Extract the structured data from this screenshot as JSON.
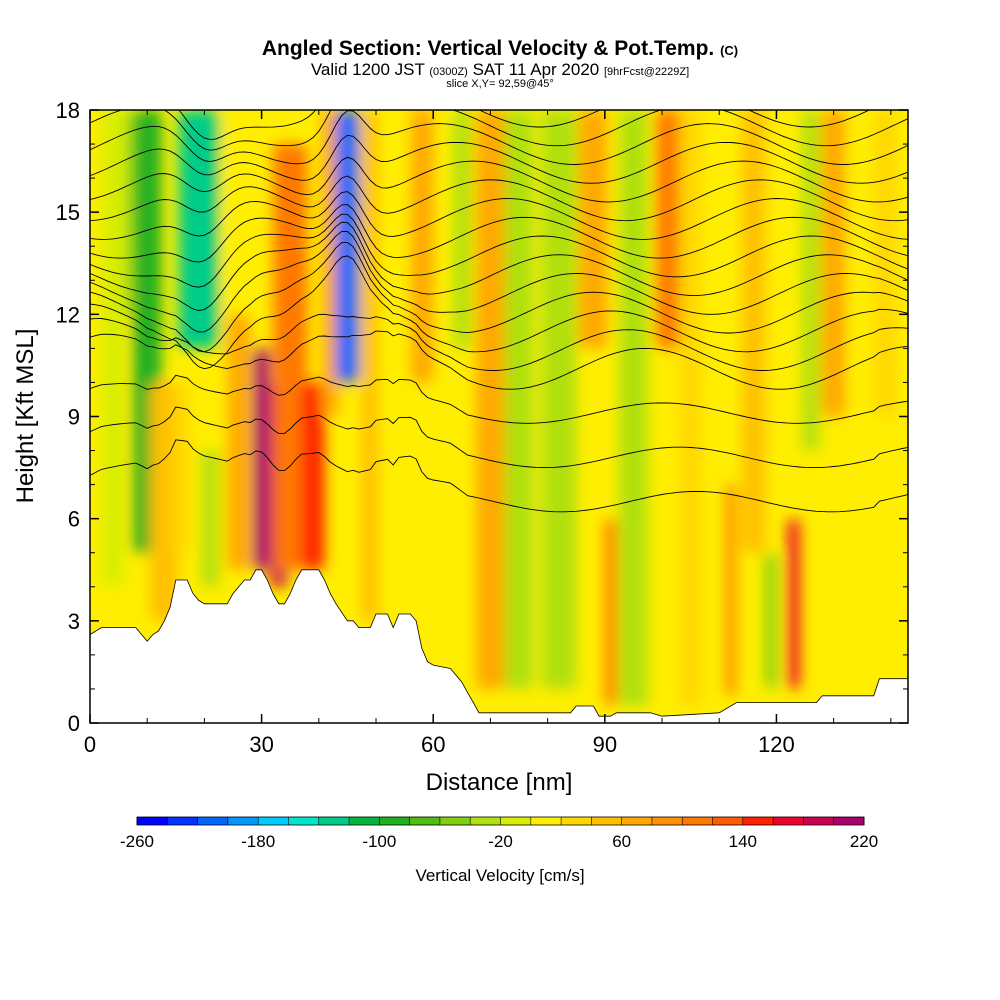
{
  "header": {
    "title_main": "Angled Section: Vertical Velocity & Pot.Temp.",
    "title_unit": "(C)",
    "valid_a": "Valid 1200 JST",
    "valid_b": "(0300Z)",
    "valid_c": "SAT 11 Apr 2020",
    "valid_d": "[9hrFcst@2229Z]",
    "slice": "slice X,Y= 92,59@45°"
  },
  "chart_data": {
    "type": "heatmap",
    "xlabel": "Distance [nm]",
    "ylabel": "Height [Kft MSL]",
    "xlim": [
      0,
      143
    ],
    "ylim": [
      0,
      18
    ],
    "x_ticks": [
      0,
      30,
      60,
      90,
      120
    ],
    "y_ticks": [
      0,
      3,
      6,
      9,
      12,
      15,
      18
    ],
    "terrain_profile": [
      [
        0,
        2.6
      ],
      [
        2,
        2.8
      ],
      [
        8,
        2.8
      ],
      [
        10,
        2.4
      ],
      [
        11,
        2.6
      ],
      [
        12,
        2.7
      ],
      [
        13,
        3.0
      ],
      [
        14,
        3.4
      ],
      [
        15,
        4.2
      ],
      [
        17,
        4.2
      ],
      [
        18,
        3.8
      ],
      [
        19,
        3.6
      ],
      [
        20,
        3.5
      ],
      [
        24,
        3.5
      ],
      [
        25,
        3.8
      ],
      [
        27,
        4.2
      ],
      [
        28,
        4.2
      ],
      [
        29,
        4.5
      ],
      [
        30,
        4.5
      ],
      [
        31,
        4.2
      ],
      [
        32,
        3.8
      ],
      [
        33,
        3.5
      ],
      [
        34,
        3.5
      ],
      [
        35,
        3.8
      ],
      [
        36,
        4.2
      ],
      [
        37,
        4.5
      ],
      [
        40,
        4.5
      ],
      [
        41,
        4.2
      ],
      [
        42,
        3.8
      ],
      [
        43,
        3.5
      ],
      [
        45,
        3.0
      ],
      [
        46,
        3.0
      ],
      [
        47,
        2.8
      ],
      [
        49,
        2.8
      ],
      [
        50,
        3.2
      ],
      [
        52,
        3.2
      ],
      [
        53,
        2.8
      ],
      [
        54,
        3.2
      ],
      [
        56,
        3.2
      ],
      [
        57,
        3.0
      ],
      [
        58,
        2.2
      ],
      [
        59,
        1.8
      ],
      [
        60,
        1.7
      ],
      [
        63,
        1.6
      ],
      [
        65,
        1.2
      ],
      [
        66,
        0.9
      ],
      [
        67,
        0.6
      ],
      [
        68,
        0.3
      ],
      [
        84,
        0.3
      ],
      [
        85,
        0.5
      ],
      [
        88,
        0.5
      ],
      [
        89,
        0.2
      ],
      [
        91,
        0.2
      ],
      [
        92,
        0.3
      ],
      [
        98,
        0.3
      ],
      [
        100,
        0.2
      ],
      [
        110,
        0.3
      ],
      [
        113,
        0.6
      ],
      [
        127,
        0.6
      ],
      [
        128,
        0.8
      ],
      [
        137,
        0.8
      ],
      [
        138,
        1.3
      ],
      [
        143,
        1.3
      ]
    ],
    "velocity_features": [
      {
        "x": 4,
        "zmin": 4,
        "zmax": 18,
        "width": 4,
        "value": -20
      },
      {
        "x": 8,
        "zmin": 12,
        "zmax": 18,
        "width": 4,
        "value": -40
      },
      {
        "x": 10,
        "zmin": 5,
        "zmax": 18,
        "width": 5,
        "value": -100
      },
      {
        "x": 13,
        "zmin": 3,
        "zmax": 10,
        "width": 5,
        "value": 40
      },
      {
        "x": 16,
        "zmin": 5,
        "zmax": 10,
        "width": 3,
        "value": 20
      },
      {
        "x": 19,
        "zmin": 11,
        "zmax": 18,
        "width": 7,
        "value": -140
      },
      {
        "x": 21,
        "zmin": 4,
        "zmax": 8,
        "width": 3,
        "value": -40
      },
      {
        "x": 25,
        "zmin": 4.5,
        "zmax": 18,
        "width": 3,
        "value": 0
      },
      {
        "x": 26,
        "zmin": 4.5,
        "zmax": 12,
        "width": 4,
        "value": 60
      },
      {
        "x": 30,
        "zmin": 4.5,
        "zmax": 11,
        "width": 3,
        "value": 200
      },
      {
        "x": 33,
        "zmin": 4,
        "zmax": 10,
        "width": 3,
        "value": 190
      },
      {
        "x": 35,
        "zmin": 4.5,
        "zmax": 17,
        "width": 6,
        "value": 100
      },
      {
        "x": 39,
        "zmin": 4.5,
        "zmax": 10,
        "width": 4,
        "value": 150
      },
      {
        "x": 42,
        "zmin": 9,
        "zmax": 18,
        "width": 3,
        "value": 60
      },
      {
        "x": 45,
        "zmin": 10,
        "zmax": 18,
        "width": 4,
        "value": -220
      },
      {
        "x": 49,
        "zmin": 3,
        "zmax": 18,
        "width": 3,
        "value": 40
      },
      {
        "x": 53,
        "zmin": 3,
        "zmax": 18,
        "width": 5,
        "value": 0
      },
      {
        "x": 58,
        "zmin": 10,
        "zmax": 18,
        "width": 4,
        "value": 60
      },
      {
        "x": 65,
        "zmin": 11,
        "zmax": 18,
        "width": 3,
        "value": -40
      },
      {
        "x": 70,
        "zmin": 1,
        "zmax": 18,
        "width": 5,
        "value": 60
      },
      {
        "x": 75,
        "zmin": 1,
        "zmax": 18,
        "width": 5,
        "value": -30
      },
      {
        "x": 82,
        "zmin": 1,
        "zmax": 18,
        "width": 6,
        "value": -40
      },
      {
        "x": 88,
        "zmin": 11,
        "zmax": 18,
        "width": 5,
        "value": 60
      },
      {
        "x": 91,
        "zmin": 0.5,
        "zmax": 6,
        "width": 2,
        "value": 100
      },
      {
        "x": 95,
        "zmin": 0.5,
        "zmax": 18,
        "width": 5,
        "value": -30
      },
      {
        "x": 102,
        "zmin": 11,
        "zmax": 18,
        "width": 6,
        "value": 110
      },
      {
        "x": 105,
        "zmin": 0.5,
        "zmax": 18,
        "width": 4,
        "value": 20
      },
      {
        "x": 112,
        "zmin": 0.8,
        "zmax": 7,
        "width": 2,
        "value": 80
      },
      {
        "x": 116,
        "zmin": 5,
        "zmax": 18,
        "width": 4,
        "value": 40
      },
      {
        "x": 119,
        "zmin": 1,
        "zmax": 5,
        "width": 2,
        "value": -60
      },
      {
        "x": 123,
        "zmin": 1,
        "zmax": 6,
        "width": 2,
        "value": 160
      },
      {
        "x": 126,
        "zmin": 8,
        "zmax": 18,
        "width": 3,
        "value": -40
      },
      {
        "x": 130,
        "zmin": 9,
        "zmax": 18,
        "width": 4,
        "value": 60
      },
      {
        "x": 139,
        "zmin": 9,
        "zmax": 18,
        "width": 4,
        "value": 20
      }
    ],
    "colorbar": {
      "label": "Vertical Velocity [cm/s]",
      "min": -260,
      "max": 220,
      "step": 20,
      "tick_labels": [
        "-260",
        "-180",
        "-100",
        "-20",
        "60",
        "140",
        "220"
      ],
      "colors": [
        "#0000ff",
        "#0033ff",
        "#0066ff",
        "#0099ff",
        "#00ccff",
        "#00e5cc",
        "#00cc88",
        "#00b840",
        "#20b020",
        "#50be10",
        "#80d010",
        "#b0e010",
        "#d8ee00",
        "#ffee00",
        "#ffd800",
        "#ffc000",
        "#ffa800",
        "#ff9000",
        "#ff7800",
        "#ff5a00",
        "#ff2000",
        "#ee0030",
        "#cc0050",
        "#aa0070",
        "#80008a"
      ]
    }
  }
}
